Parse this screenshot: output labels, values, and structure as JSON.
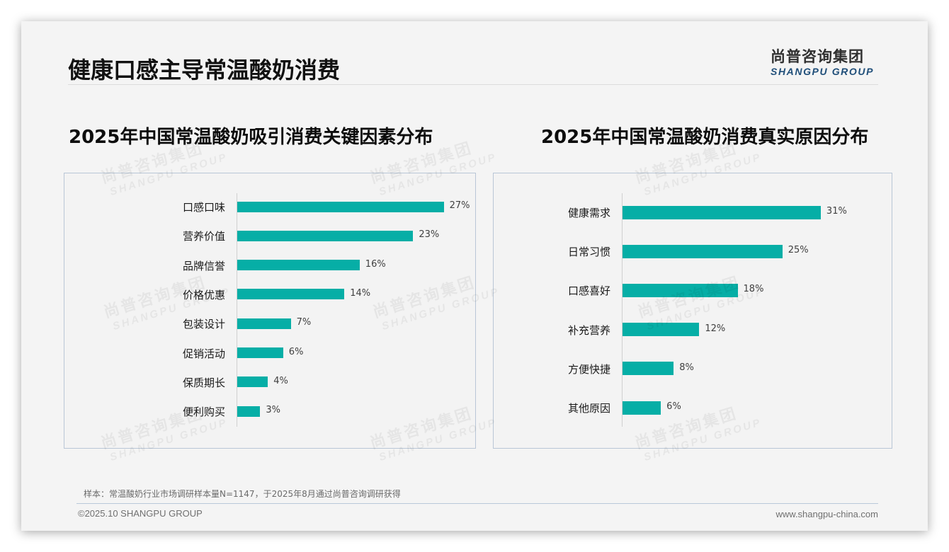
{
  "header": {
    "title": "健康口感主导常温酸奶消费",
    "logo_cn": "尚普咨询集团",
    "logo_en": "SHANGPU GROUP"
  },
  "watermark": {
    "cn": "尚普咨询集团",
    "en": "SHANGPU GROUP"
  },
  "colors": {
    "bar": "#06aea6",
    "panel_border": "#b9c6d6",
    "logo_en": "#1f4e79"
  },
  "chart_data": [
    {
      "type": "bar",
      "orientation": "horizontal",
      "title": "2025年中国常温酸奶吸引消费关键因素分布",
      "categories": [
        "口感口味",
        "营养价值",
        "品牌信誉",
        "价格优惠",
        "包装设计",
        "促销活动",
        "保质期长",
        "便利购买"
      ],
      "values": [
        27,
        23,
        16,
        14,
        7,
        6,
        4,
        3
      ],
      "labels": [
        "27%",
        "23%",
        "16%",
        "14%",
        "7%",
        "6%",
        "4%",
        "3%"
      ],
      "xlabel": "",
      "ylabel": "",
      "unit": "%",
      "grid": false,
      "legend": null
    },
    {
      "type": "bar",
      "orientation": "horizontal",
      "title": "2025年中国常温酸奶消费真实原因分布",
      "categories": [
        "健康需求",
        "日常习惯",
        "口感喜好",
        "补充营养",
        "方便快捷",
        "其他原因"
      ],
      "values": [
        31,
        25,
        18,
        12,
        8,
        6
      ],
      "labels": [
        "31%",
        "25%",
        "18%",
        "12%",
        "8%",
        "6%"
      ],
      "xlabel": "",
      "ylabel": "",
      "unit": "%",
      "grid": false,
      "legend": null
    }
  ],
  "footer": {
    "note": "样本：常温酸奶行业市场调研样本量N=1147，于2025年8月通过尚普咨询调研获得",
    "copyright": "©2025.10 SHANGPU GROUP",
    "website": "www.shangpu-china.com"
  }
}
